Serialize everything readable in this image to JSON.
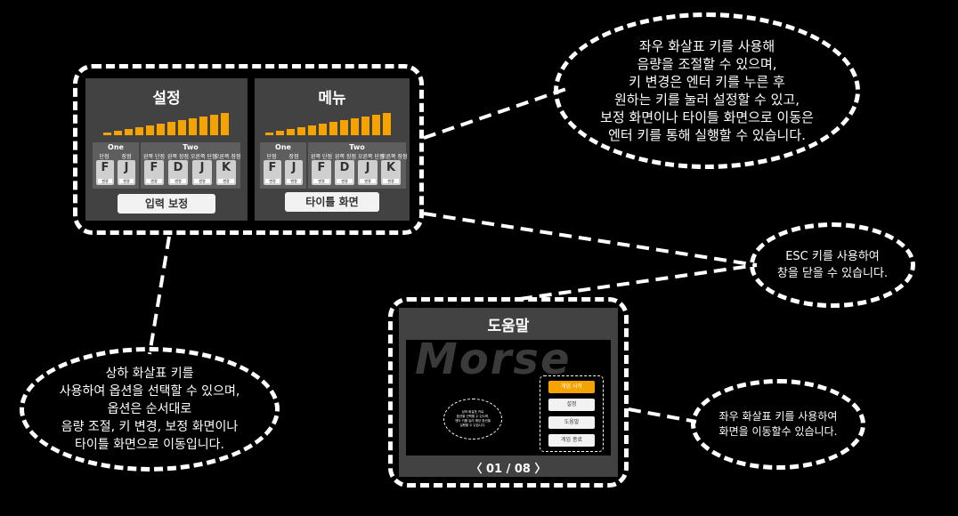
{
  "settings_panel": {
    "title": "설정",
    "volume_levels": 12,
    "volume_active": 12,
    "groups": {
      "one": "One",
      "two": "Two"
    },
    "one_modes": [
      "단점",
      "장점"
    ],
    "two_modes": [
      "왼쪽 단점",
      "왼쪽 장점",
      "오른쪽 단점",
      "오른쪽 장점"
    ],
    "keys_one": [
      "F",
      "J"
    ],
    "keys_two": [
      "F",
      "D",
      "J",
      "K"
    ],
    "key_sub": "변경",
    "button": "입력 보정"
  },
  "menu_panel": {
    "title": "메뉴",
    "groups": {
      "one": "One",
      "two": "Two"
    },
    "one_modes": [
      "단점",
      "장점"
    ],
    "two_modes": [
      "왼쪽 단점",
      "왼쪽 장점",
      "오른쪽 단점",
      "오른쪽 장점"
    ],
    "keys_one": [
      "F",
      "J"
    ],
    "keys_two": [
      "F",
      "D",
      "J",
      "K"
    ],
    "key_sub": "변경",
    "button": "타이틀 화면"
  },
  "help_panel": {
    "title": "도움말",
    "logo_text": "Morse",
    "menu_items": [
      "게임 시작",
      "설정",
      "도움말",
      "게임 종료"
    ],
    "active_index": 0,
    "mini_note": "상하 화살표 키로\n옵션을 선택할 수 있으며,\n엔터 키를 눌러 해당 옵션을\n실행할 수 있습니다.",
    "pager": "〈 01 / 08 〉"
  },
  "callouts": {
    "top_right": "좌우 화살표 키를 사용해\n음량을 조절할 수 있으며,\n키 변경은 엔터 키를 누른 후\n원하는 키를 눌러 설정할 수 있고,\n보정 화면이나 타이틀 화면으로 이동은\n엔터 키를 통해 실행할 수 있습니다.",
    "esc": "ESC 키를 사용하여\n창을 닫을 수 있습니다.",
    "bottom_left": "상하 화살표 키를\n사용하여 옵션을 선택할 수 있으며,\n옵션은 순서대로\n음량 조절, 키 변경, 보정 화면이나\n타이틀 화면으로 이동입니다.",
    "page_nav": "좌우 화살표 키를 사용하여\n화면을 이동할수 있습니다."
  },
  "colors": {
    "accent": "#f5a300",
    "panel": "#424242",
    "background": "#000000"
  }
}
